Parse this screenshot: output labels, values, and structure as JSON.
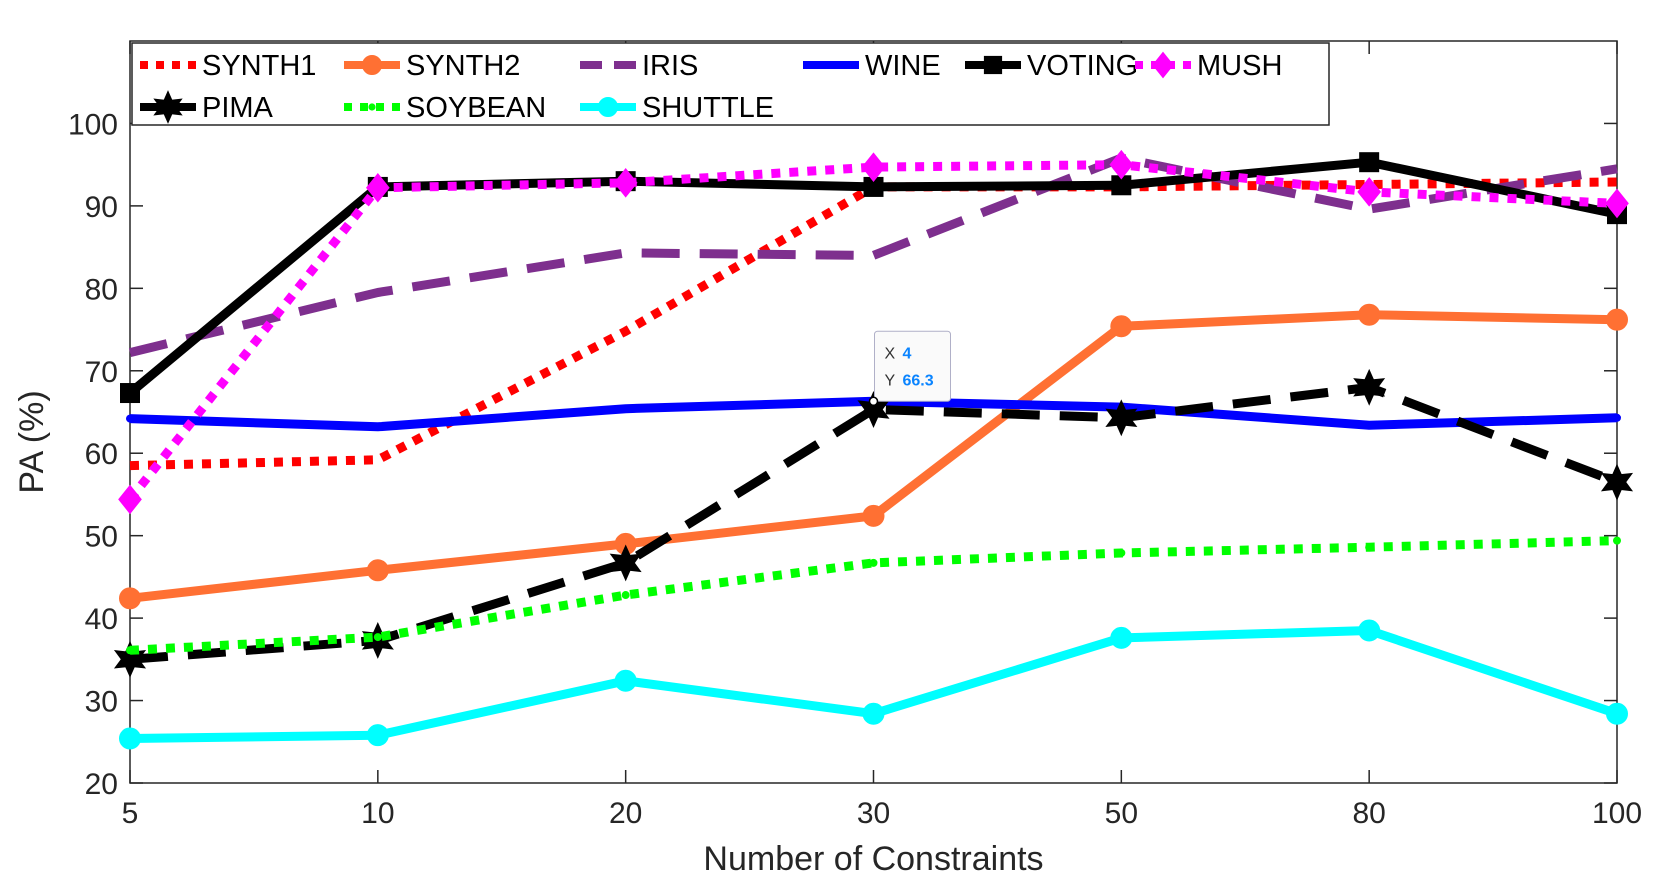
{
  "chart_data": {
    "type": "line",
    "xlabel": "Number of Constraints",
    "ylabel": "PA (%)",
    "categories": [
      "5",
      "10",
      "20",
      "30",
      "50",
      "80",
      "100"
    ],
    "ylim": [
      20,
      110
    ],
    "yticks": [
      20,
      30,
      40,
      50,
      60,
      70,
      80,
      90,
      100
    ],
    "grid": false,
    "legend_position": "top-left",
    "series": [
      {
        "name": "SYNTH1",
        "color": "#ff0000",
        "style": "dotted",
        "marker": "none",
        "values": [
          58.5,
          59.2,
          74.8,
          92.3,
          92.3,
          92.6,
          92.9
        ]
      },
      {
        "name": "SYNTH2",
        "color": "#ff7033",
        "style": "solid",
        "marker": "circle",
        "values": [
          42.4,
          45.8,
          49.0,
          52.4,
          75.4,
          76.8,
          76.2
        ]
      },
      {
        "name": "IRIS",
        "color": "#7e2f8e",
        "style": "dashed",
        "marker": "none",
        "values": [
          72.2,
          79.5,
          84.3,
          84.0,
          95.8,
          89.6,
          94.5
        ]
      },
      {
        "name": "WINE",
        "color": "#0000ff",
        "style": "solid",
        "marker": "dot",
        "values": [
          64.2,
          63.2,
          65.4,
          66.3,
          65.6,
          63.4,
          64.3
        ]
      },
      {
        "name": "VOTING",
        "color": "#000000",
        "style": "solid",
        "marker": "square",
        "values": [
          67.3,
          92.3,
          93.0,
          92.3,
          92.5,
          95.3,
          89.0
        ]
      },
      {
        "name": "MUSH",
        "color": "#ff00ff",
        "style": "dotted",
        "marker": "diamond",
        "values": [
          54.4,
          92.2,
          92.8,
          94.7,
          95.0,
          91.7,
          90.3
        ]
      },
      {
        "name": "PIMA",
        "color": "#000000",
        "style": "dashed",
        "marker": "hexagram",
        "values": [
          35.0,
          37.3,
          46.7,
          65.3,
          64.3,
          68.0,
          56.5
        ]
      },
      {
        "name": "SOYBEAN",
        "color": "#00ff00",
        "style": "dotted",
        "marker": "dot",
        "values": [
          36.1,
          37.7,
          42.8,
          46.7,
          47.9,
          48.6,
          49.4
        ]
      },
      {
        "name": "SHUTTLE",
        "color": "#00ffff",
        "style": "solid",
        "marker": "circle",
        "values": [
          25.4,
          25.8,
          32.4,
          28.4,
          37.6,
          38.5,
          28.4
        ]
      }
    ],
    "datatip": {
      "series": "WINE",
      "category": "30",
      "x_label": "X",
      "x_value": "4",
      "y_label": "Y",
      "y_value": "66.3"
    }
  }
}
